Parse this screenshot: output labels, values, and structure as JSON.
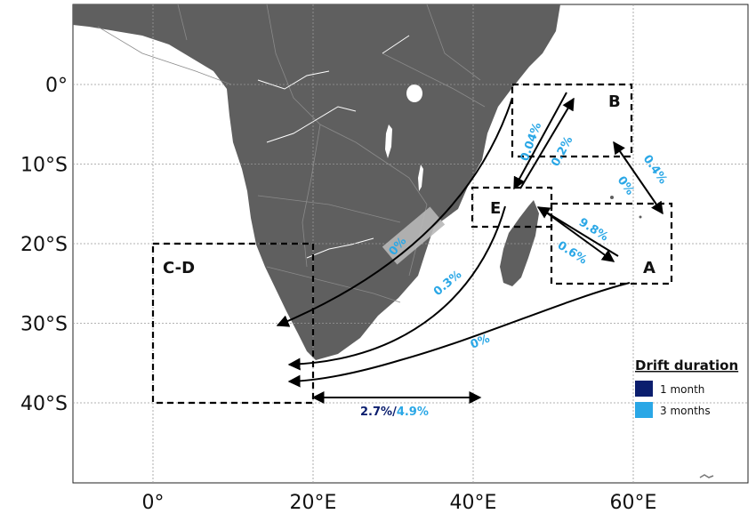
{
  "colors": {
    "land": "#5f5f5f",
    "border": "#8a8a8a",
    "one_month": "#0b1e6e",
    "three_months": "#2aa7e6",
    "arrow": "#000000"
  },
  "axes": {
    "lat_labels": [
      "0°",
      "10°S",
      "20°S",
      "30°S",
      "40°S"
    ],
    "lon_labels": [
      "0°",
      "20°E",
      "40°E",
      "60°E"
    ]
  },
  "regions": {
    "A": "A",
    "B": "B",
    "CD": "C-D",
    "E": "E"
  },
  "connections": {
    "b_to_e": "0.04%",
    "e_to_b": "0.2%",
    "b_to_a": "0.4%",
    "a_to_b": "0%",
    "e_to_a": "9.8%",
    "a_to_e": "0.6%",
    "mozambique": "0%",
    "e_to_cd": "0.3%",
    "a_to_cd": "0%",
    "cd_east_1m": "2.7%",
    "cd_east_sep": "/",
    "cd_east_3m": "4.9%"
  },
  "legend": {
    "title": "Drift duration",
    "items": [
      {
        "label": "1 month",
        "color": "#0b1e6e"
      },
      {
        "label": "3 months",
        "color": "#2aa7e6"
      }
    ]
  }
}
